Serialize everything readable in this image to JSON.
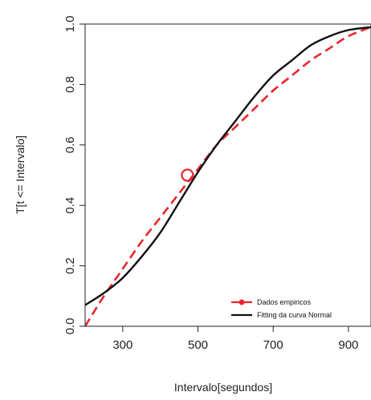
{
  "chart_data": {
    "type": "line",
    "title": "",
    "xlabel": "Intervalo[segundos]",
    "ylabel": "T[t <= Intervalo]",
    "xlim": [
      200,
      960
    ],
    "ylim": [
      0,
      1.0
    ],
    "x_ticks": [
      300,
      500,
      700,
      900
    ],
    "y_ticks": [
      0.0,
      0.2,
      0.4,
      0.6,
      0.8,
      1.0
    ],
    "y_tick_labels": [
      "0.0",
      "0.2",
      "0.4",
      "0.6",
      "0.8",
      "1.0"
    ],
    "grid": false,
    "legend_position": "bottom-right",
    "series": [
      {
        "name": "Dados empiricos",
        "color": "#e8262d",
        "style": "dashed",
        "x": [
          200,
          250,
          300,
          350,
          400,
          450,
          500,
          550,
          600,
          650,
          700,
          750,
          800,
          850,
          900,
          960
        ],
        "y": [
          0.0,
          0.1,
          0.19,
          0.28,
          0.36,
          0.44,
          0.52,
          0.6,
          0.66,
          0.72,
          0.78,
          0.83,
          0.88,
          0.92,
          0.96,
          0.99
        ]
      },
      {
        "name": "Fitting da curva  Normal",
        "color": "#111111",
        "style": "solid",
        "x": [
          200,
          250,
          300,
          350,
          400,
          450,
          500,
          550,
          600,
          650,
          700,
          750,
          800,
          850,
          900,
          960
        ],
        "y": [
          0.07,
          0.11,
          0.16,
          0.23,
          0.31,
          0.41,
          0.51,
          0.6,
          0.68,
          0.76,
          0.83,
          0.88,
          0.93,
          0.96,
          0.98,
          0.99
        ]
      }
    ],
    "marker": {
      "x": 472,
      "y": 0.5,
      "color": "#e8262d"
    }
  }
}
